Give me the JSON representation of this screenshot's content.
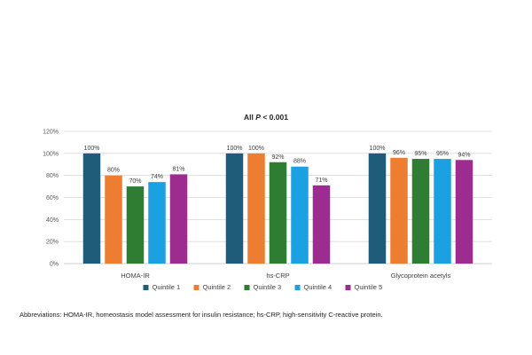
{
  "chart_data": {
    "type": "bar",
    "title": "All",
    "title_italic": "P",
    "title_suffix": "< 0.001",
    "categories": [
      "HOMA-IR",
      "hs-CRP",
      "Glycoprotein acetyls"
    ],
    "series": [
      {
        "name": "Quintile 1",
        "color": "#1f5c7a",
        "values": [
          100,
          100,
          100
        ],
        "labels": [
          "100%",
          "100%",
          "100%"
        ]
      },
      {
        "name": "Quintile 2",
        "color": "#ed7d31",
        "values": [
          80,
          100,
          96
        ],
        "labels": [
          "80%",
          "100%",
          "96%"
        ]
      },
      {
        "name": "Quintile 3",
        "color": "#2e7d32",
        "values": [
          70,
          92,
          95
        ],
        "labels": [
          "70%",
          "92%",
          "95%"
        ]
      },
      {
        "name": "Quintile 4",
        "color": "#1ba1e2",
        "values": [
          74,
          88,
          95
        ],
        "labels": [
          "74%",
          "88%",
          "95%"
        ]
      },
      {
        "name": "Quintile 5",
        "color": "#9c2c8f",
        "values": [
          81,
          71,
          94
        ],
        "labels": [
          "81%",
          "71%",
          "94%"
        ]
      }
    ],
    "yticks": [
      "0%",
      "20%",
      "40%",
      "60%",
      "80%",
      "100%",
      "120%"
    ],
    "ylim": [
      0,
      120
    ],
    "grid": true,
    "legend_position": "bottom"
  },
  "footnote": "Abbreviations: HOMA-IR, homeostasis model assessment for insulin resistance; hs-CRP, high-sensitivity C-reactive protein."
}
